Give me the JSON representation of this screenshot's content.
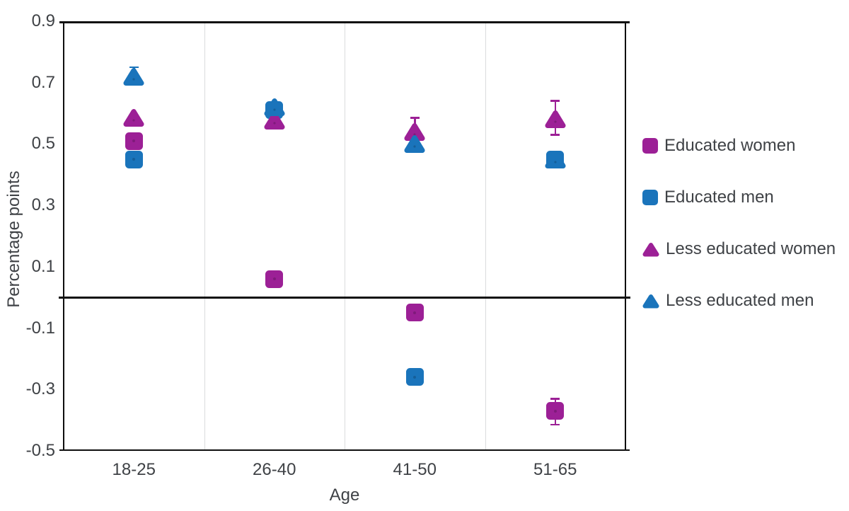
{
  "chart_data": {
    "type": "scatter",
    "title": "",
    "xlabel": "Age",
    "ylabel": "Percentage points",
    "categories": [
      "18-25",
      "26-40",
      "41-50",
      "51-65"
    ],
    "ylim": [
      -0.5,
      0.9
    ],
    "ytick_values": [
      0.9,
      0.7,
      0.5,
      0.3,
      0.1,
      -0.1,
      -0.3,
      -0.5
    ],
    "ytick_labels": [
      "0.9",
      "0.7",
      "0.5",
      "0.3",
      "0.1",
      "-0.1",
      "-0.3",
      "-0.5"
    ],
    "zero_reference_line": true,
    "grid": "vertical-category-dividers",
    "legend_position": "right",
    "colors": {
      "women_purple": "#9C2096",
      "men_blue": "#1A74BB",
      "axis_black": "#0f0f0f",
      "divider_gray": "#dadcdd",
      "text_gray": "#3f4246"
    },
    "series": [
      {
        "name": "Educated women",
        "marker": "square",
        "color": "#9C2096",
        "values": [
          0.51,
          0.06,
          -0.05,
          -0.37
        ],
        "error_ranges": [
          null,
          null,
          null,
          [
            -0.415,
            -0.33
          ]
        ]
      },
      {
        "name": "Educated men",
        "marker": "square",
        "color": "#1A74BB",
        "values": [
          0.45,
          0.61,
          -0.26,
          0.45
        ],
        "error_ranges": [
          [
            0.425,
            0.475
          ],
          null,
          null,
          [
            0.425,
            0.475
          ]
        ]
      },
      {
        "name": "Less educated women",
        "marker": "triangle",
        "color": "#9C2096",
        "values": [
          0.585,
          0.575,
          0.54,
          0.58
        ],
        "error_ranges": [
          null,
          null,
          [
            0.5,
            0.585
          ],
          [
            0.53,
            0.64
          ]
        ]
      },
      {
        "name": "Less educated men",
        "marker": "triangle",
        "color": "#1A74BB",
        "values": [
          0.72,
          0.62,
          0.5,
          0.45
        ],
        "error_ranges": [
          [
            0.695,
            0.75
          ],
          null,
          null,
          null
        ]
      }
    ]
  }
}
